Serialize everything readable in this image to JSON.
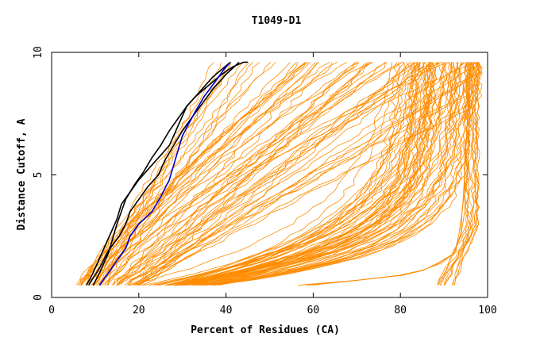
{
  "chart_data": {
    "type": "line",
    "title": "T1049-D1",
    "xlabel": "Percent of Residues (CA)",
    "ylabel": "Distance Cutoff, A",
    "xlim": [
      0,
      100
    ],
    "ylim": [
      0,
      10
    ],
    "x_ticks": [
      0,
      20,
      40,
      60,
      80,
      100
    ],
    "y_ticks": [
      0,
      5,
      10
    ],
    "x_tick_labels": [
      "0",
      "20",
      "40",
      "60",
      "80",
      "100"
    ],
    "y_tick_labels": [
      "0",
      "5",
      "10"
    ],
    "grid": false,
    "legend": "none",
    "colors": {
      "models": "#ff8c00",
      "highlight": "#000000",
      "reference": "#0000cc",
      "axis": "#000000"
    },
    "series": [
      {
        "role": "highlight",
        "color": "#000000",
        "x": [
          8.5,
          11,
          13,
          15.5,
          17,
          18,
          20,
          22,
          24.5,
          26,
          28,
          30,
          32,
          34.5,
          37,
          40,
          43
        ],
        "y": [
          0.5,
          1.2,
          1.9,
          2.5,
          3.0,
          3.5,
          4.0,
          4.5,
          5.0,
          5.6,
          6.2,
          6.8,
          7.3,
          7.9,
          8.5,
          9.1,
          9.6
        ]
      },
      {
        "role": "highlight",
        "color": "#000000",
        "x": [
          9.5,
          11,
          13,
          14,
          15,
          16,
          17,
          19,
          21,
          23,
          25,
          27,
          29,
          31,
          33,
          35,
          37,
          39,
          41
        ],
        "y": [
          0.5,
          1.0,
          1.8,
          2.4,
          3.0,
          3.5,
          4.0,
          4.6,
          5.1,
          5.7,
          6.2,
          6.8,
          7.3,
          7.8,
          8.2,
          8.6,
          9.0,
          9.3,
          9.6
        ]
      },
      {
        "role": "highlight",
        "color": "#000000",
        "x": [
          8,
          9.5,
          11,
          12.5,
          14,
          15,
          16,
          18,
          20,
          22.5,
          25,
          27,
          28,
          29,
          30,
          31,
          33,
          35,
          37,
          39,
          41.5,
          44,
          45
        ],
        "y": [
          0.5,
          1.0,
          1.6,
          2.2,
          2.8,
          3.2,
          3.8,
          4.3,
          4.8,
          5.3,
          5.8,
          6.2,
          6.6,
          7.0,
          7.4,
          7.8,
          8.2,
          8.5,
          8.8,
          9.1,
          9.4,
          9.6,
          9.6
        ]
      },
      {
        "role": "reference",
        "color": "#0000cc",
        "x": [
          11,
          13,
          15,
          17,
          18,
          20,
          23,
          25,
          27,
          28,
          29,
          30,
          31.5,
          33,
          35,
          37.5,
          39.5,
          41
        ],
        "y": [
          0.5,
          1.0,
          1.5,
          2.0,
          2.5,
          3.0,
          3.5,
          4.1,
          4.8,
          5.4,
          6.0,
          6.6,
          7.1,
          7.6,
          8.2,
          8.8,
          9.3,
          9.6
        ]
      }
    ]
  }
}
